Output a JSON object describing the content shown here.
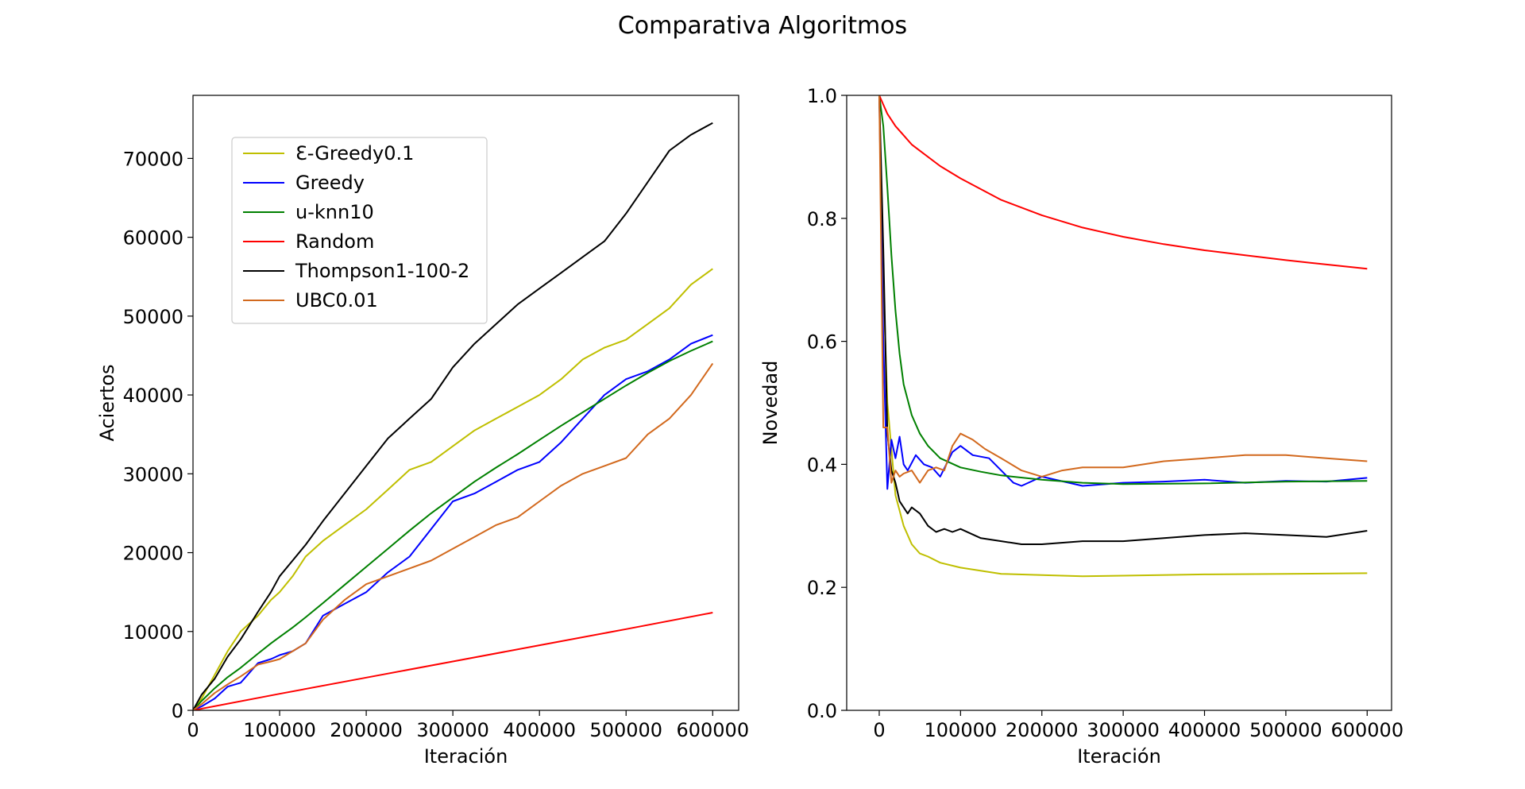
{
  "suptitle": "Comparativa Algoritmos",
  "chart_data": [
    {
      "type": "line",
      "title": "",
      "xlabel": "Iteración",
      "ylabel": "Aciertos",
      "xlim": [
        0,
        630000
      ],
      "ylim": [
        0,
        78000
      ],
      "xticks": [
        0,
        100000,
        200000,
        300000,
        400000,
        500000,
        600000
      ],
      "xtick_labels": [
        "0",
        "100000",
        "200000",
        "300000",
        "400000",
        "500000",
        "600000"
      ],
      "yticks": [
        0,
        10000,
        20000,
        30000,
        40000,
        50000,
        60000,
        70000
      ],
      "ytick_labels": [
        "0",
        "10000",
        "20000",
        "30000",
        "40000",
        "50000",
        "60000",
        "70000"
      ],
      "grid": false,
      "legend_position": "upper-left",
      "series": [
        {
          "name": "Ɛ-Greedy0.1",
          "color": "#bfbf00",
          "x": [
            0,
            10000,
            25000,
            40000,
            55000,
            75000,
            90000,
            100000,
            115000,
            130000,
            150000,
            175000,
            200000,
            225000,
            250000,
            275000,
            300000,
            325000,
            350000,
            375000,
            400000,
            425000,
            450000,
            475000,
            500000,
            525000,
            550000,
            575000,
            600000
          ],
          "y": [
            0,
            1500,
            4500,
            7500,
            10000,
            12000,
            14000,
            15000,
            17000,
            19500,
            21500,
            23500,
            25500,
            28000,
            30500,
            31500,
            33500,
            35500,
            37000,
            38500,
            40000,
            42000,
            44500,
            46000,
            47000,
            49000,
            51000,
            54000,
            56000
          ]
        },
        {
          "name": "Greedy",
          "color": "#0000ff",
          "x": [
            0,
            10000,
            25000,
            40000,
            55000,
            75000,
            90000,
            100000,
            115000,
            130000,
            150000,
            175000,
            200000,
            225000,
            250000,
            275000,
            300000,
            325000,
            350000,
            375000,
            400000,
            425000,
            450000,
            475000,
            500000,
            525000,
            550000,
            575000,
            600000
          ],
          "y": [
            0,
            500,
            1500,
            3000,
            3500,
            6000,
            6500,
            7000,
            7500,
            8500,
            12000,
            13500,
            15000,
            17500,
            19500,
            23000,
            26500,
            27500,
            29000,
            30500,
            31500,
            34000,
            37000,
            40000,
            42000,
            43000,
            44500,
            46500,
            47600
          ]
        },
        {
          "name": "u-knn10",
          "color": "#008000",
          "x": [
            0,
            10000,
            25000,
            40000,
            55000,
            75000,
            90000,
            100000,
            115000,
            130000,
            150000,
            175000,
            200000,
            225000,
            250000,
            275000,
            300000,
            325000,
            350000,
            375000,
            400000,
            425000,
            450000,
            475000,
            500000,
            525000,
            550000,
            575000,
            600000
          ],
          "y": [
            0,
            1200,
            2800,
            4200,
            5400,
            7200,
            8500,
            9300,
            10500,
            11800,
            13600,
            15900,
            18200,
            20500,
            22800,
            25000,
            27000,
            29000,
            30800,
            32500,
            34300,
            36100,
            37800,
            39500,
            41200,
            42800,
            44300,
            45600,
            46800
          ]
        },
        {
          "name": "Random",
          "color": "#ff0000",
          "x": [
            0,
            100000,
            200000,
            300000,
            400000,
            500000,
            600000
          ],
          "y": [
            0,
            2100,
            4150,
            6200,
            8250,
            10300,
            12400
          ]
        },
        {
          "name": "Thompson1-100-2",
          "color": "#000000",
          "x": [
            0,
            10000,
            25000,
            40000,
            55000,
            75000,
            90000,
            100000,
            115000,
            130000,
            150000,
            175000,
            200000,
            225000,
            250000,
            275000,
            300000,
            325000,
            350000,
            375000,
            400000,
            425000,
            450000,
            475000,
            500000,
            525000,
            550000,
            575000,
            600000
          ],
          "y": [
            0,
            2000,
            4000,
            6800,
            9000,
            12500,
            15000,
            17000,
            19000,
            21000,
            24000,
            27500,
            31000,
            34500,
            37000,
            39500,
            43500,
            46500,
            49000,
            51500,
            53500,
            55500,
            57500,
            59500,
            63000,
            67000,
            71000,
            73000,
            74500
          ]
        },
        {
          "name": "UBC0.01",
          "color": "#d2691e",
          "x": [
            0,
            10000,
            25000,
            40000,
            55000,
            75000,
            90000,
            100000,
            115000,
            130000,
            150000,
            175000,
            200000,
            225000,
            250000,
            275000,
            300000,
            325000,
            350000,
            375000,
            400000,
            425000,
            450000,
            475000,
            500000,
            525000,
            550000,
            575000,
            600000
          ],
          "y": [
            0,
            800,
            2200,
            3300,
            4300,
            5800,
            6200,
            6500,
            7500,
            8500,
            11500,
            14000,
            16000,
            17000,
            18000,
            19000,
            20500,
            22000,
            23500,
            24500,
            26500,
            28500,
            30000,
            31000,
            32000,
            35000,
            37000,
            40000,
            44000
          ]
        }
      ]
    },
    {
      "type": "line",
      "title": "",
      "xlabel": "Iteración",
      "ylabel": "Novedad",
      "xlim": [
        -40000,
        630000
      ],
      "ylim": [
        0.0,
        1.0
      ],
      "xticks": [
        0,
        100000,
        200000,
        300000,
        400000,
        500000,
        600000
      ],
      "xtick_labels": [
        "0",
        "100000",
        "200000",
        "300000",
        "400000",
        "500000",
        "600000"
      ],
      "yticks": [
        0.0,
        0.2,
        0.4,
        0.6,
        0.8,
        1.0
      ],
      "ytick_labels": [
        "0.0",
        "0.2",
        "0.4",
        "0.6",
        "0.8",
        "1.0"
      ],
      "grid": false,
      "series": [
        {
          "name": "Ɛ-Greedy0.1",
          "color": "#bfbf00",
          "x": [
            0,
            5000,
            10000,
            20000,
            30000,
            40000,
            50000,
            60000,
            75000,
            100000,
            150000,
            200000,
            250000,
            300000,
            400000,
            500000,
            600000
          ],
          "y": [
            1.0,
            0.7,
            0.5,
            0.35,
            0.3,
            0.27,
            0.255,
            0.25,
            0.24,
            0.232,
            0.222,
            0.22,
            0.218,
            0.219,
            0.221,
            0.222,
            0.223
          ]
        },
        {
          "name": "Greedy",
          "color": "#0000ff",
          "x": [
            0,
            5000,
            10000,
            15000,
            20000,
            25000,
            30000,
            35000,
            45000,
            55000,
            65000,
            75000,
            90000,
            100000,
            115000,
            135000,
            150000,
            165000,
            175000,
            200000,
            250000,
            300000,
            350000,
            400000,
            450000,
            500000,
            550000,
            600000
          ],
          "y": [
            1.0,
            0.6,
            0.36,
            0.44,
            0.41,
            0.445,
            0.4,
            0.39,
            0.415,
            0.4,
            0.395,
            0.38,
            0.42,
            0.43,
            0.415,
            0.41,
            0.39,
            0.37,
            0.365,
            0.38,
            0.365,
            0.37,
            0.372,
            0.375,
            0.37,
            0.373,
            0.372,
            0.378
          ]
        },
        {
          "name": "u-knn10",
          "color": "#008000",
          "x": [
            0,
            5000,
            10000,
            15000,
            20000,
            25000,
            30000,
            40000,
            50000,
            60000,
            75000,
            100000,
            125000,
            150000,
            200000,
            250000,
            300000,
            400000,
            500000,
            600000
          ],
          "y": [
            1.0,
            0.95,
            0.85,
            0.74,
            0.65,
            0.58,
            0.53,
            0.48,
            0.45,
            0.43,
            0.41,
            0.395,
            0.388,
            0.382,
            0.375,
            0.37,
            0.368,
            0.369,
            0.372,
            0.373
          ]
        },
        {
          "name": "Random",
          "color": "#ff0000",
          "x": [
            0,
            5000,
            10000,
            20000,
            30000,
            40000,
            50000,
            75000,
            100000,
            150000,
            200000,
            250000,
            300000,
            350000,
            400000,
            450000,
            500000,
            550000,
            600000
          ],
          "y": [
            1.0,
            0.985,
            0.97,
            0.95,
            0.935,
            0.92,
            0.91,
            0.885,
            0.865,
            0.83,
            0.805,
            0.785,
            0.77,
            0.758,
            0.748,
            0.74,
            0.732,
            0.725,
            0.718
          ]
        },
        {
          "name": "Thompson1-100-2",
          "color": "#000000",
          "x": [
            0,
            5000,
            10000,
            15000,
            20000,
            25000,
            35000,
            40000,
            50000,
            60000,
            70000,
            80000,
            90000,
            100000,
            125000,
            150000,
            175000,
            200000,
            250000,
            300000,
            350000,
            400000,
            450000,
            500000,
            550000,
            600000
          ],
          "y": [
            1.0,
            0.75,
            0.45,
            0.39,
            0.37,
            0.34,
            0.32,
            0.33,
            0.32,
            0.3,
            0.29,
            0.295,
            0.29,
            0.295,
            0.28,
            0.275,
            0.27,
            0.27,
            0.275,
            0.275,
            0.28,
            0.285,
            0.288,
            0.285,
            0.282,
            0.292
          ]
        },
        {
          "name": "UBC0.01",
          "color": "#d2691e",
          "x": [
            0,
            5000,
            10000,
            15000,
            20000,
            25000,
            30000,
            40000,
            50000,
            60000,
            70000,
            80000,
            90000,
            100000,
            115000,
            130000,
            150000,
            175000,
            200000,
            225000,
            250000,
            300000,
            350000,
            400000,
            450000,
            500000,
            550000,
            600000
          ],
          "y": [
            1.0,
            0.46,
            0.46,
            0.37,
            0.39,
            0.38,
            0.385,
            0.39,
            0.37,
            0.39,
            0.395,
            0.39,
            0.43,
            0.45,
            0.44,
            0.425,
            0.41,
            0.39,
            0.38,
            0.39,
            0.395,
            0.395,
            0.405,
            0.41,
            0.415,
            0.415,
            0.41,
            0.405
          ]
        }
      ]
    }
  ]
}
